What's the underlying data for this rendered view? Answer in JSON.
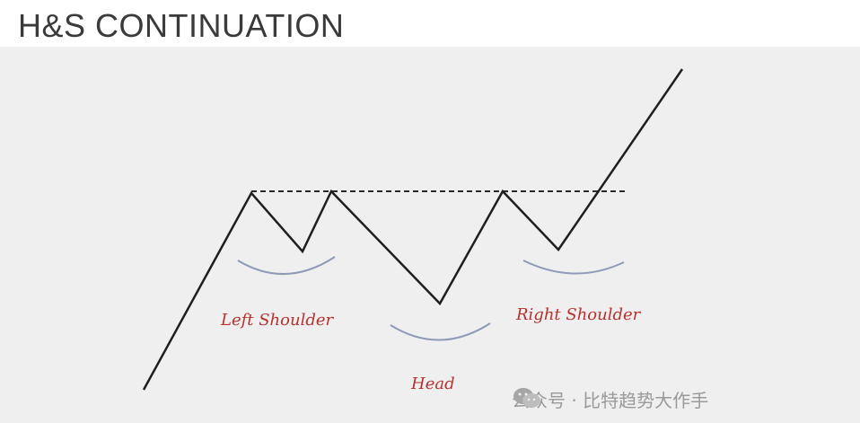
{
  "title": "H&S CONTINUATION",
  "labels": {
    "left_shoulder": "Left Shoulder",
    "head": "Head",
    "right_shoulder": "Right Shoulder"
  },
  "watermark": {
    "text": "公众号 · 比特趋势大作手",
    "icon": "wechat-icon"
  },
  "colors": {
    "line": "#1f1f1f",
    "label": "#b8312f",
    "arc": "#8f9ab7",
    "panel": "#efefef"
  }
}
